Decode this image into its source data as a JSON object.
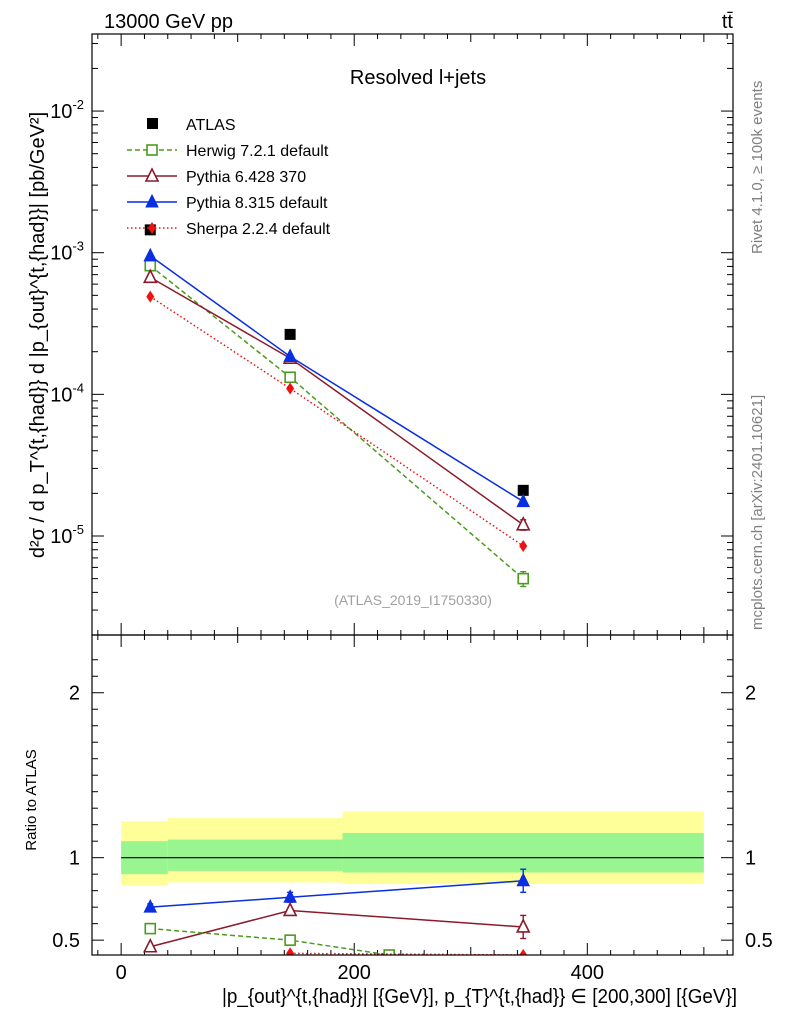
{
  "header": {
    "energy_label": "13000 GeV pp",
    "process_label": "tt̄"
  },
  "side_labels": {
    "rivet": "Rivet 4.1.0, ≥ 100k events",
    "mcplots": "mcplots.cern.ch [arXiv:2401.10621]"
  },
  "chart_data": [
    {
      "type": "line",
      "panel": "main",
      "title": "Resolved l+jets",
      "watermark": "(ATLAS_2019_I1750330)",
      "ylabel": "d²σ / d p_T^{t,{had}} d |p_{out}^{t,{had}}| [pb/GeV²]",
      "yscale": "log",
      "ylim": [
        2e-06,
        0.035
      ],
      "xlim": [
        -25,
        525
      ],
      "y_ticks": [
        {
          "value": 1e-05,
          "base": "10",
          "exp": "-5"
        },
        {
          "value": 0.0001,
          "base": "10",
          "exp": "-4"
        },
        {
          "value": 0.001,
          "base": "10",
          "exp": "-3"
        },
        {
          "value": 0.01,
          "base": "10",
          "exp": "-2"
        }
      ],
      "legend": {
        "placement": "top-left",
        "entries": [
          "ATLAS",
          "Herwig 7.2.1 default",
          "Pythia 6.428 370",
          "Pythia 8.315 default",
          "Sherpa 2.2.4 default"
        ]
      },
      "series": [
        {
          "name": "ATLAS",
          "color": "#000000",
          "marker": "square-filled",
          "line": "none",
          "x": [
            25,
            145,
            345
          ],
          "values": [
            0.00145,
            0.000265,
            2.1e-05
          ]
        },
        {
          "name": "Herwig 7.2.1 default",
          "color": "#4c9a1e",
          "marker": "square-open",
          "line": "dashed",
          "x": [
            25,
            145,
            345
          ],
          "values": [
            0.00081,
            0.000132,
            5e-06
          ],
          "err_low": [
            0,
            0,
            6e-07
          ],
          "err_high": [
            0,
            0,
            6e-07
          ]
        },
        {
          "name": "Pythia 6.428 370",
          "color": "#8b1a2b",
          "marker": "triangle-open",
          "line": "solid",
          "x": [
            25,
            145,
            345
          ],
          "values": [
            0.00067,
            0.00018,
            1.2e-05
          ],
          "err_low": [
            0,
            0,
            1e-06
          ],
          "err_high": [
            0,
            0,
            1e-06
          ]
        },
        {
          "name": "Pythia 8.315 default",
          "color": "#0a2fe0",
          "marker": "triangle-filled",
          "line": "solid",
          "x": [
            25,
            145,
            345
          ],
          "values": [
            0.00095,
            0.000185,
            1.75e-05
          ]
        },
        {
          "name": "Sherpa 2.2.4 default",
          "color": "#f01010",
          "marker": "diamond-filled",
          "line": "dotted",
          "x": [
            25,
            145,
            345
          ],
          "values": [
            0.00049,
            0.00011,
            8.5e-06
          ]
        }
      ]
    },
    {
      "type": "line",
      "panel": "ratio",
      "ylabel": "Ratio to ATLAS",
      "xlabel": "|p_{out}^{t,{had}}| [{GeV}], p_{T}^{t,{had}} ∈ [200,300] [{GeV}]",
      "ylim": [
        0.41,
        2.35
      ],
      "xlim": [
        -25,
        525
      ],
      "x_ticks": [
        0,
        200,
        400
      ],
      "y_ticks": [
        0.5,
        1,
        2
      ],
      "reference_line": 1,
      "bands": [
        {
          "xlo": 0,
          "xhi": 40,
          "yellow": [
            0.83,
            1.22
          ],
          "green": [
            0.9,
            1.1
          ]
        },
        {
          "xlo": 40,
          "xhi": 190,
          "yellow": [
            0.85,
            1.24
          ],
          "green": [
            0.92,
            1.11
          ]
        },
        {
          "xlo": 190,
          "xhi": 500,
          "yellow": [
            0.84,
            1.28
          ],
          "green": [
            0.91,
            1.15
          ]
        }
      ],
      "series": [
        {
          "name": "Pythia 8.315 default",
          "color": "#0a2fe0",
          "marker": "triangle-filled",
          "line": "solid",
          "x": [
            25,
            145,
            345
          ],
          "values": [
            0.7,
            0.76,
            0.86
          ],
          "err_low": [
            0.02,
            0.03,
            0.07
          ],
          "err_high": [
            0.02,
            0.03,
            0.07
          ]
        },
        {
          "name": "Pythia 6.428 370",
          "color": "#8b1a2b",
          "marker": "triangle-open",
          "line": "solid",
          "x": [
            25,
            145,
            345
          ],
          "values": [
            0.46,
            0.68,
            0.58
          ],
          "err_low": [
            0,
            0,
            0.07
          ],
          "err_high": [
            0,
            0,
            0.07
          ]
        },
        {
          "name": "Herwig 7.2.1 default",
          "color": "#4c9a1e",
          "marker": "square-open",
          "line": "dashed",
          "x": [
            25,
            145,
            230
          ],
          "values": [
            0.57,
            0.5,
            0.41
          ],
          "err_low": [
            0.02,
            0.02,
            0
          ],
          "err_high": [
            0.02,
            0.02,
            0
          ]
        },
        {
          "name": "Sherpa 2.2.4 default",
          "color": "#f01010",
          "marker": "diamond-filled",
          "line": "dotted",
          "x": [
            145,
            345
          ],
          "values": [
            0.42,
            0.41
          ],
          "err_low": [
            0,
            0
          ],
          "err_high": [
            0,
            0
          ]
        }
      ]
    }
  ]
}
